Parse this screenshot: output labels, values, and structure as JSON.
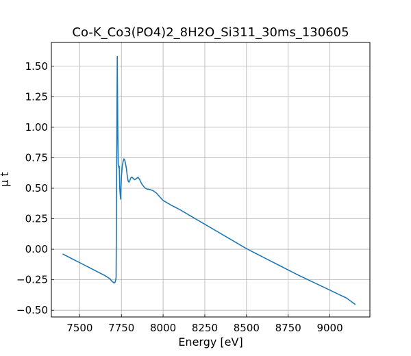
{
  "chart_data": {
    "type": "line",
    "title": "Co-K_Co3(PO4)2_8H2O_Si311_30ms_130605",
    "xlabel": "Energy [eV]",
    "ylabel": "μ t",
    "xlim": [
      7330,
      9240
    ],
    "ylim": [
      -0.555,
      1.695
    ],
    "xticks": [
      7500,
      7750,
      8000,
      8250,
      8500,
      8750,
      9000
    ],
    "xtick_labels": [
      "7500",
      "7750",
      "8000",
      "8250",
      "8500",
      "8750",
      "9000"
    ],
    "yticks": [
      1.5,
      1.25,
      1.0,
      0.75,
      0.5,
      0.25,
      0.0,
      -0.25,
      -0.5
    ],
    "ytick_labels": [
      "1.50",
      "1.25",
      "1.00",
      "0.75",
      "0.50",
      "0.25",
      "0.00",
      "−0.25",
      "−0.50"
    ],
    "grid": true,
    "series": [
      {
        "color": "#1f77b4",
        "x": [
          7400,
          7450,
          7500,
          7550,
          7600,
          7650,
          7680,
          7695,
          7705,
          7710,
          7712,
          7714,
          7716,
          7718,
          7720,
          7722,
          7725,
          7728,
          7731,
          7734,
          7737,
          7740,
          7745,
          7750,
          7755,
          7760,
          7765,
          7770,
          7775,
          7780,
          7785,
          7790,
          7795,
          7800,
          7805,
          7810,
          7815,
          7820,
          7830,
          7840,
          7850,
          7860,
          7870,
          7880,
          7890,
          7900,
          7920,
          7940,
          7960,
          7980,
          8000,
          8050,
          8100,
          8150,
          8200,
          8250,
          8300,
          8350,
          8400,
          8450,
          8500,
          8600,
          8700,
          8800,
          8900,
          9000,
          9100,
          9150
        ],
        "y": [
          -0.04,
          -0.075,
          -0.11,
          -0.145,
          -0.18,
          -0.215,
          -0.24,
          -0.265,
          -0.275,
          -0.275,
          -0.27,
          -0.26,
          -0.25,
          -0.23,
          0.15,
          0.8,
          1.58,
          1.0,
          0.7,
          0.67,
          0.68,
          0.5,
          0.41,
          0.6,
          0.68,
          0.72,
          0.74,
          0.73,
          0.7,
          0.66,
          0.6,
          0.56,
          0.55,
          0.56,
          0.58,
          0.59,
          0.59,
          0.58,
          0.57,
          0.58,
          0.59,
          0.57,
          0.54,
          0.52,
          0.505,
          0.495,
          0.49,
          0.48,
          0.46,
          0.43,
          0.4,
          0.36,
          0.325,
          0.285,
          0.245,
          0.205,
          0.165,
          0.125,
          0.085,
          0.045,
          0.005,
          -0.065,
          -0.135,
          -0.205,
          -0.27,
          -0.335,
          -0.4,
          -0.45
        ]
      }
    ]
  }
}
